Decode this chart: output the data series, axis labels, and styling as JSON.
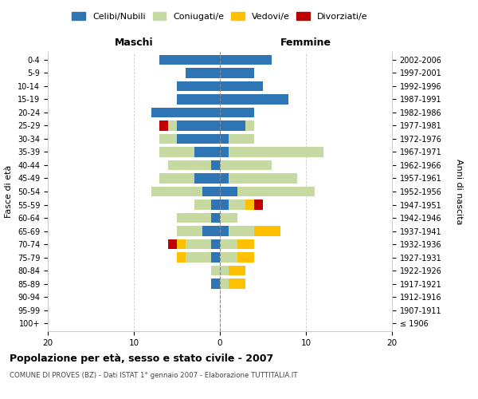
{
  "age_groups": [
    "100+",
    "95-99",
    "90-94",
    "85-89",
    "80-84",
    "75-79",
    "70-74",
    "65-69",
    "60-64",
    "55-59",
    "50-54",
    "45-49",
    "40-44",
    "35-39",
    "30-34",
    "25-29",
    "20-24",
    "15-19",
    "10-14",
    "5-9",
    "0-4"
  ],
  "birth_years": [
    "≤ 1906",
    "1907-1911",
    "1912-1916",
    "1917-1921",
    "1922-1926",
    "1927-1931",
    "1932-1936",
    "1937-1941",
    "1942-1946",
    "1947-1951",
    "1952-1956",
    "1957-1961",
    "1962-1966",
    "1967-1971",
    "1972-1976",
    "1977-1981",
    "1982-1986",
    "1987-1991",
    "1992-1996",
    "1997-2001",
    "2002-2006"
  ],
  "males": {
    "celibi": [
      0,
      0,
      0,
      1,
      0,
      1,
      1,
      2,
      1,
      1,
      2,
      3,
      1,
      3,
      5,
      5,
      8,
      5,
      5,
      4,
      7
    ],
    "coniugati": [
      0,
      0,
      0,
      0,
      1,
      3,
      3,
      3,
      4,
      2,
      6,
      4,
      5,
      4,
      2,
      1,
      0,
      0,
      0,
      0,
      0
    ],
    "vedovi": [
      0,
      0,
      0,
      0,
      0,
      1,
      1,
      0,
      0,
      0,
      0,
      0,
      0,
      0,
      0,
      0,
      0,
      0,
      0,
      0,
      0
    ],
    "divorziati": [
      0,
      0,
      0,
      0,
      0,
      0,
      1,
      0,
      0,
      0,
      0,
      0,
      0,
      0,
      0,
      1,
      0,
      0,
      0,
      0,
      0
    ]
  },
  "females": {
    "nubili": [
      0,
      0,
      0,
      0,
      0,
      0,
      0,
      1,
      0,
      1,
      2,
      1,
      0,
      1,
      1,
      3,
      4,
      8,
      5,
      4,
      6
    ],
    "coniugate": [
      0,
      0,
      0,
      1,
      1,
      2,
      2,
      3,
      2,
      2,
      9,
      8,
      6,
      11,
      3,
      1,
      0,
      0,
      0,
      0,
      0
    ],
    "vedove": [
      0,
      0,
      0,
      2,
      2,
      2,
      2,
      3,
      0,
      1,
      0,
      0,
      0,
      0,
      0,
      0,
      0,
      0,
      0,
      0,
      0
    ],
    "divorziate": [
      0,
      0,
      0,
      0,
      0,
      0,
      0,
      0,
      0,
      1,
      0,
      0,
      0,
      0,
      0,
      0,
      0,
      0,
      0,
      0,
      0
    ]
  },
  "colors": {
    "celibi_nubili": "#2e75b6",
    "coniugati": "#c5d9a0",
    "vedovi": "#ffc000",
    "divorziati": "#c00000"
  },
  "xlim": 20,
  "title": "Popolazione per età, sesso e stato civile - 2007",
  "subtitle": "COMUNE DI PROVES (BZ) - Dati ISTAT 1° gennaio 2007 - Elaborazione TUTTITALIA.IT",
  "ylabel_left": "Fasce di età",
  "ylabel_right": "Anni di nascita",
  "xlabel_left": "Maschi",
  "xlabel_right": "Femmine",
  "bg_color": "#ffffff",
  "grid_color": "#cccccc",
  "bar_height": 0.75
}
